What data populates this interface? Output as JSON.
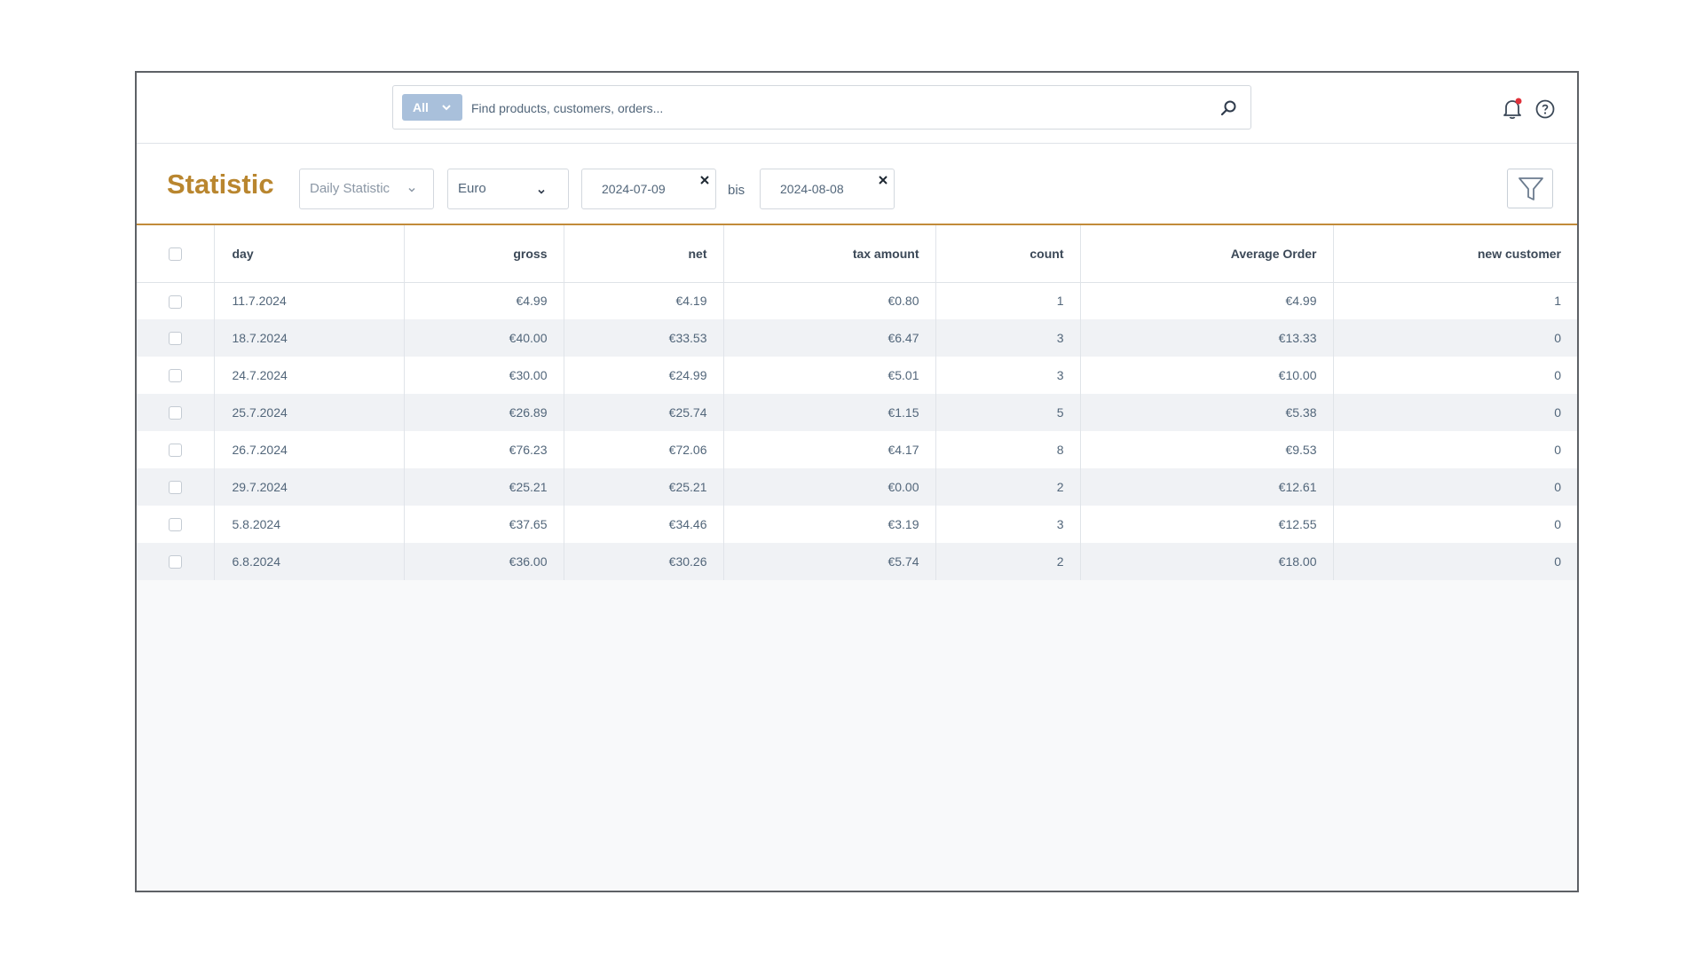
{
  "search": {
    "type_label": "All",
    "placeholder": "Find products, customers, orders..."
  },
  "header": {
    "title": "Statistic",
    "statistic_type": "Daily Statistic",
    "currency": "Euro",
    "date_from": "2024-07-09",
    "date_separator": "bis",
    "date_to": "2024-08-08"
  },
  "colors": {
    "accent": "#b9862f",
    "notification_dot": "#e0303a",
    "search_type_bg": "#a9c0db"
  },
  "icons": [
    "chevron-down-icon",
    "search-icon",
    "bell-icon",
    "help-icon",
    "close-icon",
    "filter-icon"
  ],
  "table": {
    "columns": [
      "day",
      "gross",
      "net",
      "tax amount",
      "count",
      "Average Order",
      "new customer"
    ],
    "rows": [
      [
        "11.7.2024",
        "€4.99",
        "€4.19",
        "€0.80",
        "1",
        "€4.99",
        "1"
      ],
      [
        "18.7.2024",
        "€40.00",
        "€33.53",
        "€6.47",
        "3",
        "€13.33",
        "0"
      ],
      [
        "24.7.2024",
        "€30.00",
        "€24.99",
        "€5.01",
        "3",
        "€10.00",
        "0"
      ],
      [
        "25.7.2024",
        "€26.89",
        "€25.74",
        "€1.15",
        "5",
        "€5.38",
        "0"
      ],
      [
        "26.7.2024",
        "€76.23",
        "€72.06",
        "€4.17",
        "8",
        "€9.53",
        "0"
      ],
      [
        "29.7.2024",
        "€25.21",
        "€25.21",
        "€0.00",
        "2",
        "€12.61",
        "0"
      ],
      [
        "5.8.2024",
        "€37.65",
        "€34.46",
        "€3.19",
        "3",
        "€12.55",
        "0"
      ],
      [
        "6.8.2024",
        "€36.00",
        "€30.26",
        "€5.74",
        "2",
        "€18.00",
        "0"
      ]
    ]
  }
}
